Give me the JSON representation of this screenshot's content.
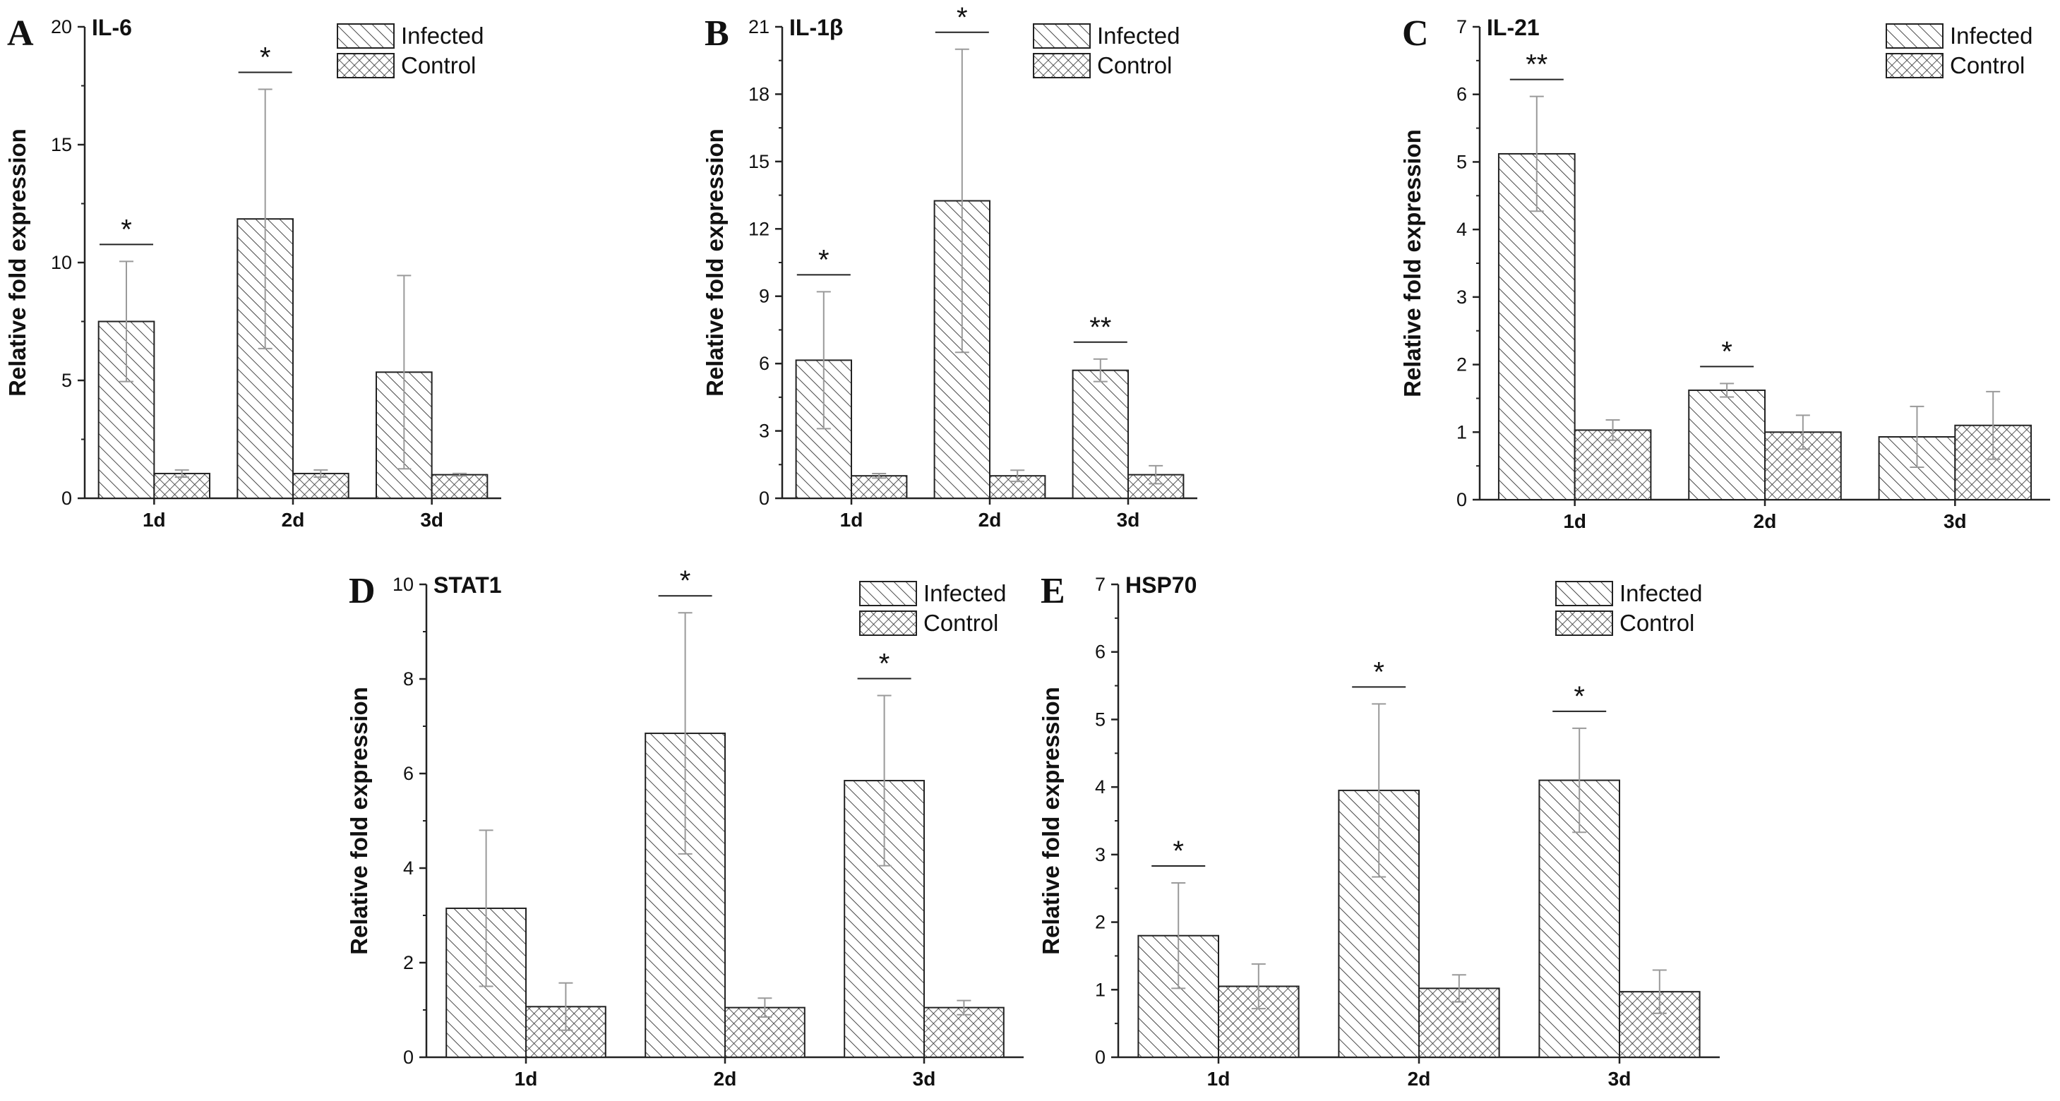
{
  "figure": {
    "series_names": [
      "Infected",
      "Control"
    ],
    "ylabel": "Relative fold expression"
  },
  "chart_data": [
    {
      "panel": "A",
      "type": "bar",
      "title": "IL-6",
      "xlabel": "",
      "ylabel": "Relative fold expression",
      "categories": [
        "1d",
        "2d",
        "3d"
      ],
      "ylim": [
        0,
        20
      ],
      "yticks": [
        0,
        5,
        10,
        15,
        20
      ],
      "legend_position": "top-right",
      "series": [
        {
          "name": "Infected",
          "pattern": "diagonal-hatch",
          "values": [
            7.5,
            11.85,
            5.35
          ],
          "errors": [
            2.55,
            5.5,
            4.1
          ]
        },
        {
          "name": "Control",
          "pattern": "crosshatch",
          "values": [
            1.05,
            1.05,
            1.0
          ],
          "errors": [
            0.15,
            0.15,
            0.05
          ]
        }
      ],
      "significance": [
        "*",
        "*",
        ""
      ]
    },
    {
      "panel": "B",
      "type": "bar",
      "title": "IL-1β",
      "xlabel": "",
      "ylabel": "Relative fold expression",
      "categories": [
        "1d",
        "2d",
        "3d"
      ],
      "ylim": [
        0,
        21
      ],
      "yticks": [
        0,
        3,
        6,
        9,
        12,
        15,
        18,
        21
      ],
      "legend_position": "top-right",
      "series": [
        {
          "name": "Infected",
          "pattern": "diagonal-hatch",
          "values": [
            6.15,
            13.25,
            5.7
          ],
          "errors": [
            3.05,
            6.75,
            0.5
          ]
        },
        {
          "name": "Control",
          "pattern": "crosshatch",
          "values": [
            1.0,
            1.0,
            1.05
          ],
          "errors": [
            0.1,
            0.25,
            0.4
          ]
        }
      ],
      "significance": [
        "*",
        "*",
        "**"
      ]
    },
    {
      "panel": "C",
      "type": "bar",
      "title": "IL-21",
      "xlabel": "",
      "ylabel": "Relative fold expression",
      "categories": [
        "1d",
        "2d",
        "3d"
      ],
      "ylim": [
        0,
        7
      ],
      "yticks": [
        0,
        1,
        2,
        3,
        4,
        5,
        6,
        7
      ],
      "legend_position": "top-right",
      "series": [
        {
          "name": "Infected",
          "pattern": "diagonal-hatch",
          "values": [
            5.12,
            1.62,
            0.93
          ],
          "errors": [
            0.85,
            0.1,
            0.45
          ]
        },
        {
          "name": "Control",
          "pattern": "crosshatch",
          "values": [
            1.03,
            1.0,
            1.1
          ],
          "errors": [
            0.15,
            0.25,
            0.5
          ]
        }
      ],
      "significance": [
        "**",
        "*",
        ""
      ]
    },
    {
      "panel": "D",
      "type": "bar",
      "title": "STAT1",
      "xlabel": "",
      "ylabel": "Relative fold expression",
      "categories": [
        "1d",
        "2d",
        "3d"
      ],
      "ylim": [
        0,
        10
      ],
      "yticks": [
        0,
        2,
        4,
        6,
        8,
        10
      ],
      "legend_position": "top-right",
      "series": [
        {
          "name": "Infected",
          "pattern": "diagonal-hatch",
          "values": [
            3.15,
            6.85,
            5.85
          ],
          "errors": [
            1.65,
            2.55,
            1.8
          ]
        },
        {
          "name": "Control",
          "pattern": "crosshatch",
          "values": [
            1.07,
            1.05,
            1.05
          ],
          "errors": [
            0.5,
            0.2,
            0.15
          ]
        }
      ],
      "significance": [
        "",
        "*",
        "*"
      ]
    },
    {
      "panel": "E",
      "type": "bar",
      "title": "HSP70",
      "xlabel": "",
      "ylabel": "Relative fold expression",
      "categories": [
        "1d",
        "2d",
        "3d"
      ],
      "ylim": [
        0,
        7
      ],
      "yticks": [
        0,
        1,
        2,
        3,
        4,
        5,
        6,
        7
      ],
      "legend_position": "top-right",
      "series": [
        {
          "name": "Infected",
          "pattern": "diagonal-hatch",
          "values": [
            1.8,
            3.95,
            4.1
          ],
          "errors": [
            0.78,
            1.28,
            0.77
          ]
        },
        {
          "name": "Control",
          "pattern": "crosshatch",
          "values": [
            1.05,
            1.02,
            0.97
          ],
          "errors": [
            0.33,
            0.2,
            0.32
          ]
        }
      ],
      "significance": [
        "*",
        "*",
        "*"
      ]
    }
  ]
}
